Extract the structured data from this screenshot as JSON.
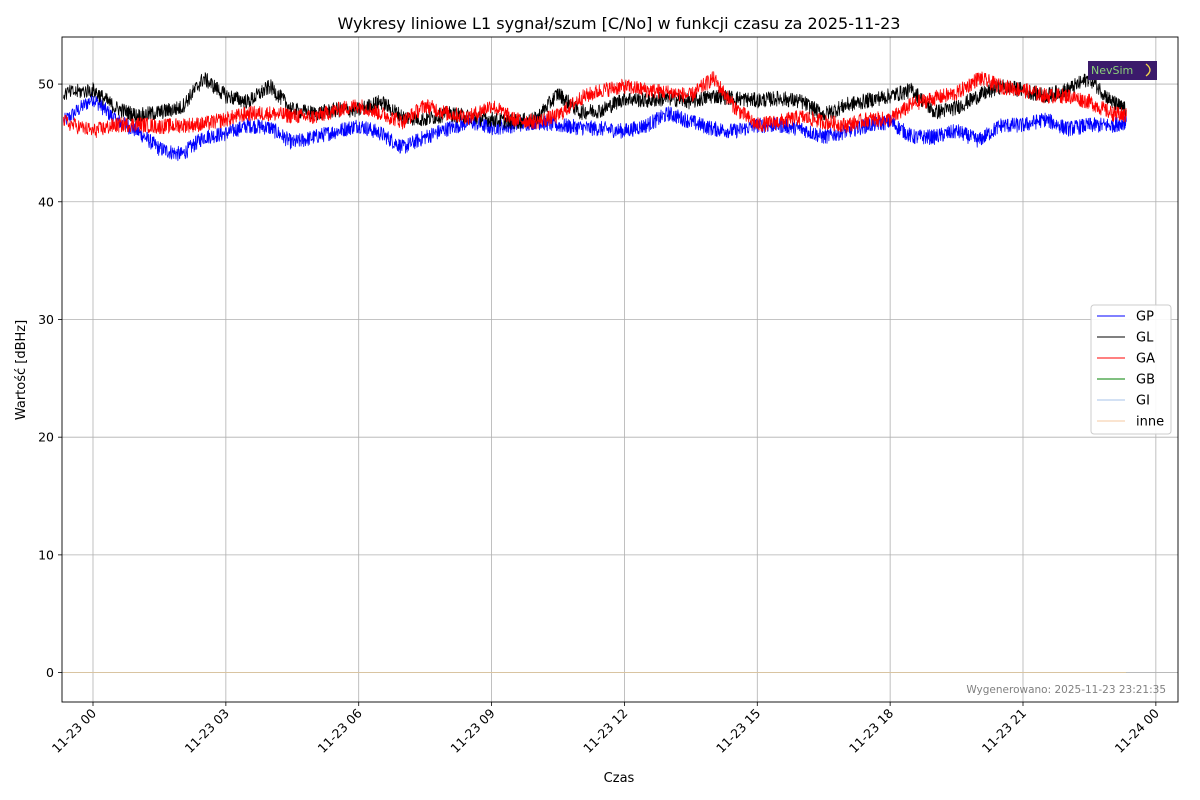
{
  "chart_data": {
    "type": "line",
    "title": "Wykresy liniowe L1 sygnał/szum [C/No] w funkcji czasu za 2025-11-23",
    "xlabel": "Czas",
    "ylabel": "Wartość [dBHz]",
    "x_range": [
      "2025-11-22 23:18",
      "2025-11-24 00:30"
    ],
    "ylim": [
      -2.5,
      54
    ],
    "grid": true,
    "legend_position": "center-right",
    "x_ticks": [
      "11-23 00",
      "11-23 03",
      "11-23 06",
      "11-23 09",
      "11-23 12",
      "11-23 15",
      "11-23 18",
      "11-23 21",
      "11-24 00"
    ],
    "y_ticks": [
      0,
      10,
      20,
      30,
      40,
      50
    ],
    "x": [
      "2025-11-22 23:20",
      "2025-11-23 00:00",
      "2025-11-23 00:30",
      "2025-11-23 01:00",
      "2025-11-23 01:30",
      "2025-11-23 02:00",
      "2025-11-23 02:30",
      "2025-11-23 03:00",
      "2025-11-23 03:30",
      "2025-11-23 04:00",
      "2025-11-23 04:30",
      "2025-11-23 05:00",
      "2025-11-23 05:30",
      "2025-11-23 06:00",
      "2025-11-23 06:30",
      "2025-11-23 07:00",
      "2025-11-23 07:30",
      "2025-11-23 08:00",
      "2025-11-23 08:30",
      "2025-11-23 09:00",
      "2025-11-23 09:30",
      "2025-11-23 10:00",
      "2025-11-23 10:30",
      "2025-11-23 11:00",
      "2025-11-23 11:30",
      "2025-11-23 12:00",
      "2025-11-23 12:30",
      "2025-11-23 13:00",
      "2025-11-23 13:30",
      "2025-11-23 14:00",
      "2025-11-23 14:30",
      "2025-11-23 15:00",
      "2025-11-23 15:30",
      "2025-11-23 16:00",
      "2025-11-23 16:30",
      "2025-11-23 17:00",
      "2025-11-23 17:30",
      "2025-11-23 18:00",
      "2025-11-23 18:30",
      "2025-11-23 19:00",
      "2025-11-23 19:30",
      "2025-11-23 20:00",
      "2025-11-23 20:30",
      "2025-11-23 21:00",
      "2025-11-23 21:30",
      "2025-11-23 22:00",
      "2025-11-23 22:30",
      "2025-11-23 23:00",
      "2025-11-23 23:20"
    ],
    "series": [
      {
        "name": "GP",
        "color": "#0000ff",
        "width": 0.8,
        "values": [
          46.8,
          48.8,
          47.0,
          46.0,
          44.5,
          44.0,
          45.5,
          45.8,
          46.5,
          46.3,
          45.0,
          45.5,
          46.0,
          46.5,
          45.8,
          44.6,
          45.5,
          46.2,
          46.8,
          46.3,
          46.5,
          46.8,
          46.5,
          46.3,
          46.2,
          46.0,
          46.5,
          47.5,
          46.8,
          46.2,
          46.0,
          46.5,
          46.5,
          46.2,
          45.5,
          46.0,
          46.5,
          46.8,
          45.5,
          45.5,
          46.0,
          45.2,
          46.5,
          46.5,
          47.0,
          46.2,
          46.5,
          46.5,
          46.8
        ]
      },
      {
        "name": "GL",
        "color": "#000000",
        "width": 0.8,
        "values": [
          49.2,
          49.5,
          48.0,
          47.3,
          47.6,
          48.0,
          50.5,
          49.0,
          48.5,
          49.8,
          47.8,
          47.5,
          47.8,
          47.8,
          48.5,
          47.2,
          47.0,
          47.5,
          47.2,
          47.0,
          46.8,
          47.0,
          49.2,
          47.6,
          47.8,
          48.8,
          48.6,
          48.8,
          48.5,
          49.0,
          48.8,
          48.6,
          48.8,
          48.5,
          47.4,
          48.2,
          48.6,
          49.0,
          49.5,
          47.6,
          48.0,
          49.0,
          49.8,
          49.5,
          49.0,
          49.5,
          50.5,
          48.5,
          47.8
        ]
      },
      {
        "name": "GA",
        "color": "#ff0000",
        "width": 0.8,
        "values": [
          46.8,
          46.0,
          46.5,
          46.6,
          46.4,
          46.5,
          46.6,
          47.0,
          47.5,
          47.5,
          47.3,
          47.2,
          47.8,
          48.2,
          47.5,
          46.8,
          48.2,
          47.5,
          47.2,
          48.2,
          47.0,
          46.8,
          47.3,
          48.8,
          49.5,
          49.8,
          49.5,
          49.3,
          49.0,
          50.5,
          48.0,
          46.5,
          46.8,
          47.2,
          46.8,
          46.5,
          47.0,
          47.0,
          48.3,
          48.8,
          49.2,
          50.5,
          49.8,
          49.5,
          49.0,
          49.0,
          48.5,
          47.5,
          47.3
        ]
      },
      {
        "name": "GB",
        "color": "#008000",
        "width": 0.8,
        "values": [
          0,
          0,
          0,
          0,
          0,
          0,
          0,
          0,
          0,
          0,
          0,
          0,
          0,
          0,
          0,
          0,
          0,
          0,
          0,
          0,
          0,
          0,
          0,
          0,
          0,
          0,
          0,
          0,
          0,
          0,
          0,
          0,
          0,
          0,
          0,
          0,
          0,
          0,
          0,
          0,
          0,
          0,
          0,
          0,
          0,
          0,
          0,
          0,
          0
        ]
      },
      {
        "name": "GI",
        "color": "#a7c3e8",
        "width": 0.8,
        "values": [
          0,
          0,
          0,
          0,
          0,
          0,
          0,
          0,
          0,
          0,
          0,
          0,
          0,
          0,
          0,
          0,
          0,
          0,
          0,
          0,
          0,
          0,
          0,
          0,
          0,
          0,
          0,
          0,
          0,
          0,
          0,
          0,
          0,
          0,
          0,
          0,
          0,
          0,
          0,
          0,
          0,
          0,
          0,
          0,
          0,
          0,
          0,
          0,
          0
        ]
      },
      {
        "name": "inne",
        "color": "#f5c9a0",
        "width": 0.8,
        "values": [
          0,
          0,
          0,
          0,
          0,
          0,
          0,
          0,
          0,
          0,
          0,
          0,
          0,
          0,
          0,
          0,
          0,
          0,
          0,
          0,
          0,
          0,
          0,
          0,
          0,
          0,
          0,
          0,
          0,
          0,
          0,
          0,
          0,
          0,
          0,
          0,
          0,
          0,
          0,
          0,
          0,
          0,
          0,
          0,
          0,
          0,
          0,
          0,
          0
        ]
      }
    ]
  },
  "footer": {
    "generated": "Wygenerowano: 2025-11-23 23:21:35"
  },
  "logo": {
    "text": "NevSim",
    "background": "#3b1a6b",
    "text_color": "#8bd07a"
  },
  "colors": {
    "grid": "#b0b0b0",
    "frame": "#000000"
  }
}
